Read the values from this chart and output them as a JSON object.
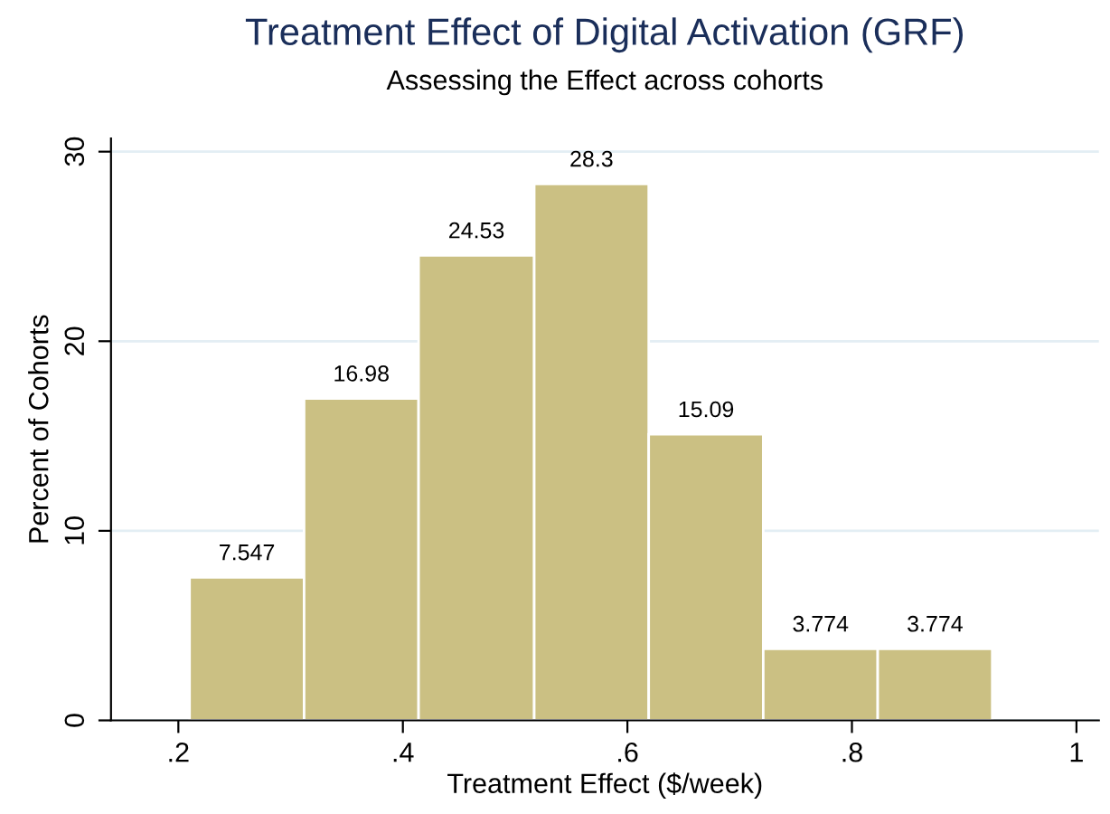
{
  "chart_data": {
    "type": "histogram",
    "title": "Treatment Effect of Digital Activation (GRF)",
    "subtitle": "Assessing the Effect across cohorts",
    "xlabel": "Treatment Effect ($/week)",
    "ylabel": "Percent of Cohorts",
    "bins": [
      0.21,
      0.312,
      0.414,
      0.517,
      0.619,
      0.721,
      0.823,
      0.925
    ],
    "values": [
      7.547,
      16.98,
      24.53,
      28.3,
      15.09,
      3.774,
      3.774
    ],
    "color": "#cbc083",
    "data_labels": true,
    "grid": "y",
    "xlim": [
      0.14,
      1.02
    ],
    "xticks": [
      {
        "value": 0.2,
        "label": ".2"
      },
      {
        "value": 0.4,
        "label": ".4"
      },
      {
        "value": 0.6,
        "label": ".6"
      },
      {
        "value": 0.8,
        "label": ".8"
      },
      1
    ],
    "ylim": [
      0,
      30.7
    ],
    "yticks": [
      0,
      10,
      20,
      30
    ]
  }
}
